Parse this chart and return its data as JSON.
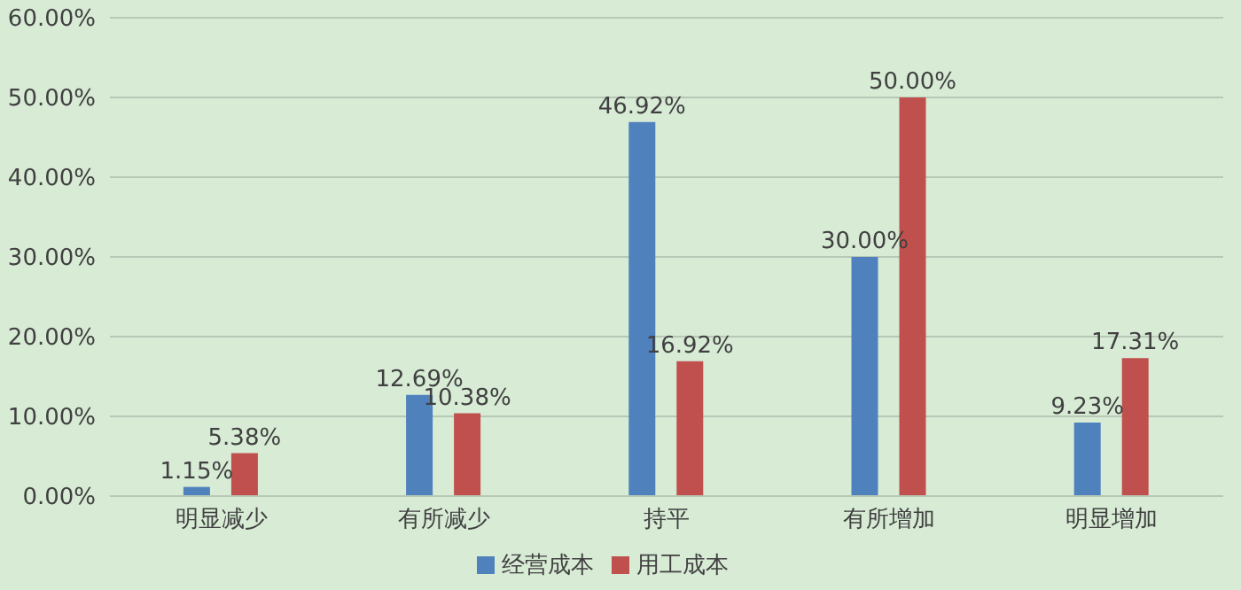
{
  "chart_data": {
    "type": "bar",
    "categories": [
      "明显减少",
      "有所减少",
      "持平",
      "有所增加",
      "明显增加"
    ],
    "series": [
      {
        "name": "经营成本",
        "color": "#4f81bd",
        "values": [
          1.15,
          12.69,
          46.92,
          30,
          9.23
        ],
        "value_labels": [
          "1.15%",
          "12.69%",
          "46.92%",
          "30.00%",
          "9.23%"
        ]
      },
      {
        "name": "用工成本",
        "color": "#c0504d",
        "values": [
          5.38,
          10.38,
          16.92,
          50,
          17.31
        ],
        "value_labels": [
          "5.38%",
          "10.38%",
          "16.92%",
          "50.00%",
          "17.31%"
        ]
      }
    ],
    "ylim": [
      0,
      60
    ],
    "yticks": [
      {
        "value": 0,
        "label": "0.00%"
      },
      {
        "value": 10,
        "label": "10.00%"
      },
      {
        "value": 20,
        "label": "20.00%"
      },
      {
        "value": 30,
        "label": "30.00%"
      },
      {
        "value": 40,
        "label": "40.00%"
      },
      {
        "value": 50,
        "label": "50.00%"
      },
      {
        "value": 60,
        "label": "60.00%"
      }
    ],
    "grid": "y",
    "legend": "bottom"
  }
}
